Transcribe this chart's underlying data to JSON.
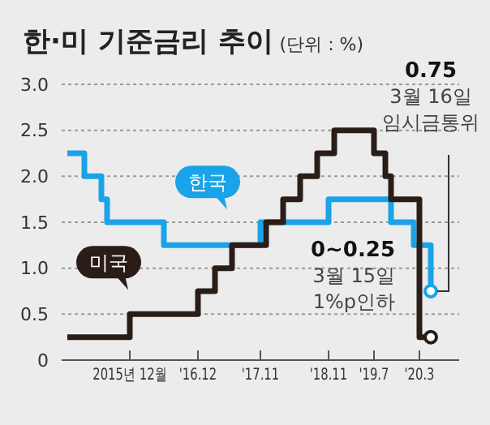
{
  "chart_data": {
    "type": "step",
    "title": "한·미 기준금리 추이",
    "subtitle": "(단위 : %)",
    "xlim": [
      "2014-12",
      "2020-10"
    ],
    "xticks": [
      {
        "value": "2015-12",
        "label": "2015년 12월"
      },
      {
        "value": "2016-12",
        "label": "'16.12"
      },
      {
        "value": "2017-11",
        "label": "'17.11"
      },
      {
        "value": "2018-11",
        "label": "'18.11"
      },
      {
        "value": "2019-07",
        "label": "'19.7"
      },
      {
        "value": "2020-03",
        "label": "'20.3"
      }
    ],
    "ylim": [
      0,
      3
    ],
    "yticks": [
      0,
      0.5,
      {
        "value": 1,
        "label": "1.0"
      },
      1.5,
      {
        "value": 2,
        "label": "2.0"
      },
      2.5,
      {
        "value": 3,
        "label": "3.0"
      }
    ],
    "grid": "y",
    "legend": false,
    "line_style": "solid",
    "series": [
      {
        "name": "한국",
        "color": "#1aa3e8",
        "x": [
          "2015-01",
          "2015-04",
          "2015-07",
          "2015-08",
          "2016-06",
          "2017-11",
          "2018-11",
          "2019-10",
          "2020-02",
          "2020-05"
        ],
        "values": [
          2.25,
          2.0,
          1.75,
          1.5,
          1.25,
          1.5,
          1.75,
          1.5,
          1.25,
          0.75
        ]
      },
      {
        "name": "미국",
        "color": "#2a1d17",
        "x": [
          "2015-01",
          "2015-12",
          "2016-12",
          "2017-03",
          "2017-06",
          "2017-12",
          "2018-03",
          "2018-06",
          "2018-09",
          "2018-12",
          "2019-07",
          "2019-09",
          "2019-10",
          "2020-03",
          "2020-05"
        ],
        "values": [
          0.25,
          0.5,
          0.75,
          1.0,
          1.25,
          1.5,
          1.75,
          2.0,
          2.25,
          2.5,
          2.25,
          2.0,
          1.75,
          0.25,
          0.25
        ]
      }
    ],
    "annotations": [
      {
        "text": "0.75\n3월 16일\n임시금통위",
        "x": "2020-05",
        "y": 0.75
      },
      {
        "text": "0~0.25\n3월 15일\n1%p인하",
        "x": "2020-05",
        "y": 0.25
      }
    ]
  }
}
